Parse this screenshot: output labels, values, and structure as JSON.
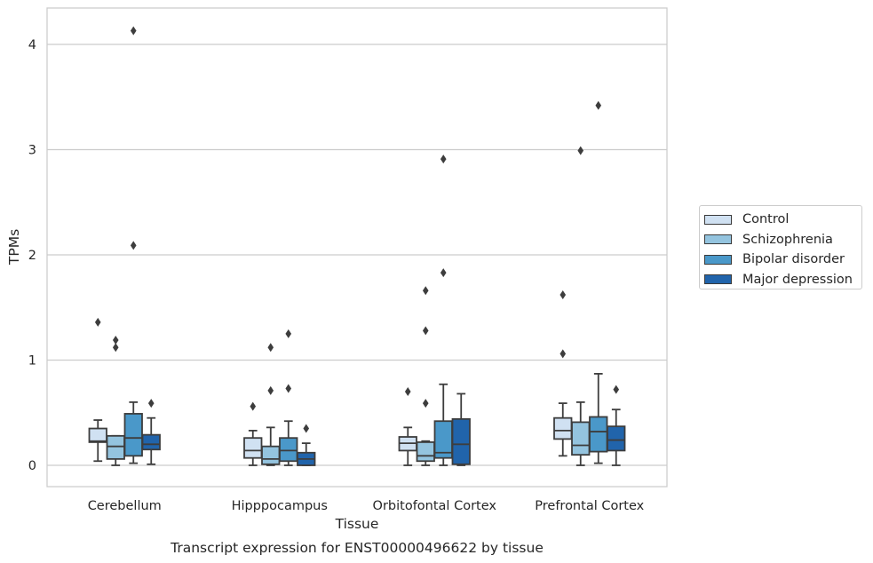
{
  "chart_data": {
    "type": "box",
    "xlabel": "Tissue",
    "ylabel": "TPMs",
    "caption": "Transcript expression for ENST00000496622 by tissue",
    "ylim": [
      -0.2,
      4.35
    ],
    "yticks": [
      "0",
      "1",
      "2",
      "3",
      "4"
    ],
    "grid": "horizontal",
    "legend_position": "right",
    "categories": [
      "Cerebellum",
      "Hipppocampus",
      "Orbitofontal Cortex",
      "Prefrontal Cortex"
    ],
    "series": [
      {
        "name": "Control",
        "color": "#d0e1f2",
        "boxes": [
          {
            "whislo": 0.04,
            "q1": 0.22,
            "med": 0.23,
            "q3": 0.35,
            "whishi": 0.43,
            "fliers": [
              1.36
            ]
          },
          {
            "whislo": 0.0,
            "q1": 0.07,
            "med": 0.14,
            "q3": 0.26,
            "whishi": 0.33,
            "fliers": [
              0.56
            ]
          },
          {
            "whislo": 0.0,
            "q1": 0.14,
            "med": 0.21,
            "q3": 0.27,
            "whishi": 0.36,
            "fliers": [
              0.7
            ]
          },
          {
            "whislo": 0.09,
            "q1": 0.25,
            "med": 0.33,
            "q3": 0.45,
            "whishi": 0.59,
            "fliers": [
              1.62,
              1.06
            ]
          }
        ]
      },
      {
        "name": "Schizophrenia",
        "color": "#94c4df",
        "boxes": [
          {
            "whislo": 0.0,
            "q1": 0.06,
            "med": 0.18,
            "q3": 0.28,
            "whishi": 0.28,
            "fliers": [
              1.19,
              1.12
            ]
          },
          {
            "whislo": 0.0,
            "q1": 0.01,
            "med": 0.06,
            "q3": 0.18,
            "whishi": 0.36,
            "fliers": [
              1.12,
              0.71
            ]
          },
          {
            "whislo": 0.0,
            "q1": 0.04,
            "med": 0.09,
            "q3": 0.22,
            "whishi": 0.23,
            "fliers": [
              1.66,
              1.28,
              0.59
            ]
          },
          {
            "whislo": 0.0,
            "q1": 0.1,
            "med": 0.19,
            "q3": 0.41,
            "whishi": 0.6,
            "fliers": [
              2.99
            ]
          }
        ]
      },
      {
        "name": "Bipolar disorder",
        "color": "#4a98c9",
        "boxes": [
          {
            "whislo": 0.02,
            "q1": 0.09,
            "med": 0.26,
            "q3": 0.49,
            "whishi": 0.6,
            "fliers": [
              4.13,
              2.09
            ]
          },
          {
            "whislo": 0.0,
            "q1": 0.04,
            "med": 0.14,
            "q3": 0.26,
            "whishi": 0.42,
            "fliers": [
              1.25,
              0.73
            ]
          },
          {
            "whislo": 0.0,
            "q1": 0.07,
            "med": 0.12,
            "q3": 0.42,
            "whishi": 0.77,
            "fliers": [
              2.91,
              1.83
            ]
          },
          {
            "whislo": 0.02,
            "q1": 0.13,
            "med": 0.32,
            "q3": 0.46,
            "whishi": 0.87,
            "fliers": [
              3.42
            ]
          }
        ]
      },
      {
        "name": "Major depression",
        "color": "#2164ab",
        "boxes": [
          {
            "whislo": 0.01,
            "q1": 0.15,
            "med": 0.2,
            "q3": 0.29,
            "whishi": 0.45,
            "fliers": [
              0.59
            ]
          },
          {
            "whislo": 0.0,
            "q1": 0.0,
            "med": 0.06,
            "q3": 0.12,
            "whishi": 0.21,
            "fliers": [
              0.35
            ]
          },
          {
            "whislo": 0.0,
            "q1": 0.01,
            "med": 0.2,
            "q3": 0.44,
            "whishi": 0.68,
            "fliers": []
          },
          {
            "whislo": 0.0,
            "q1": 0.14,
            "med": 0.24,
            "q3": 0.37,
            "whishi": 0.53,
            "fliers": [
              0.72
            ]
          }
        ]
      }
    ]
  }
}
